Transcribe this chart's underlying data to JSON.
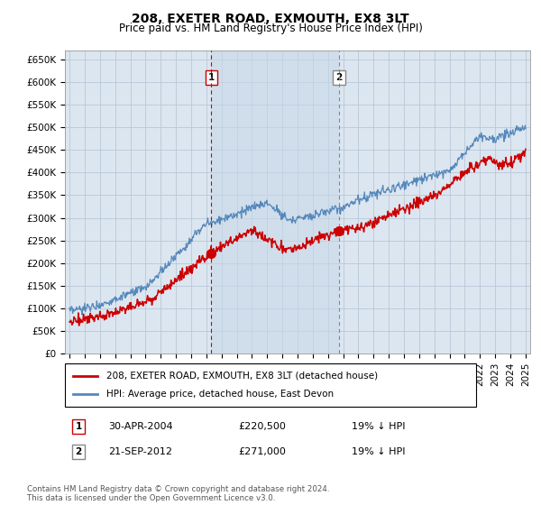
{
  "title": "208, EXETER ROAD, EXMOUTH, EX8 3LT",
  "subtitle": "Price paid vs. HM Land Registry's House Price Index (HPI)",
  "legend_label_red": "208, EXETER ROAD, EXMOUTH, EX8 3LT (detached house)",
  "legend_label_blue": "HPI: Average price, detached house, East Devon",
  "annotation1_label": "1",
  "annotation1_date": "30-APR-2004",
  "annotation1_price": "£220,500",
  "annotation1_hpi": "19% ↓ HPI",
  "annotation1_year": 2004.33,
  "annotation1_value": 220500,
  "annotation2_label": "2",
  "annotation2_date": "21-SEP-2012",
  "annotation2_price": "£271,000",
  "annotation2_hpi": "19% ↓ HPI",
  "annotation2_year": 2012.72,
  "annotation2_value": 271000,
  "ylim": [
    0,
    670000
  ],
  "yticks": [
    0,
    50000,
    100000,
    150000,
    200000,
    250000,
    300000,
    350000,
    400000,
    450000,
    500000,
    550000,
    600000,
    650000
  ],
  "background_color": "#ffffff",
  "plot_bg_color": "#dce6f0",
  "grid_color": "#b8c8d8",
  "red_color": "#cc0000",
  "blue_color": "#5588bb",
  "shade_color": "#c8d8e8",
  "footnote": "Contains HM Land Registry data © Crown copyright and database right 2024.\nThis data is licensed under the Open Government Licence v3.0."
}
